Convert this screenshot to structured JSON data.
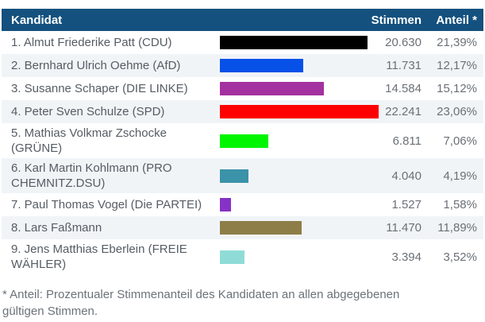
{
  "header": {
    "kandidat": "Kandidat",
    "stimmen": "Stimmen",
    "anteil": "Anteil *"
  },
  "table": {
    "rows": [
      {
        "name": "1. Almut Friederike Patt (CDU)",
        "votes": "20.630",
        "votes_value": 20630,
        "share": "21,39%",
        "bar_color": "#000000"
      },
      {
        "name": "2. Bernhard Ulrich Oehme (AfD)",
        "votes": "11.731",
        "votes_value": 11731,
        "share": "12,17%",
        "bar_color": "#0751e8"
      },
      {
        "name": "3. Susanne Schaper (DIE LINKE)",
        "votes": "14.584",
        "votes_value": 14584,
        "share": "15,12%",
        "bar_color": "#a3319f"
      },
      {
        "name": "4. Peter Sven Schulze (SPD)",
        "votes": "22.241",
        "votes_value": 22241,
        "share": "23,06%",
        "bar_color": "#fe0000"
      },
      {
        "name": "5. Mathias Volkmar Zschocke (GRÜNE)",
        "votes": "6.811",
        "votes_value": 6811,
        "share": "7,06%",
        "bar_color": "#00f500"
      },
      {
        "name": "6. Karl Martin Kohlmann (PRO CHEMNITZ.DSU)",
        "votes": "4.040",
        "votes_value": 4040,
        "share": "4,19%",
        "bar_color": "#3b93a9"
      },
      {
        "name": "7. Paul Thomas Vogel (Die PARTEI)",
        "votes": "1.527",
        "votes_value": 1527,
        "share": "1,58%",
        "bar_color": "#8632c6"
      },
      {
        "name": "8. Lars Faßmann",
        "votes": "11.470",
        "votes_value": 11470,
        "share": "11,89%",
        "bar_color": "#8d7e48"
      },
      {
        "name": "9. Jens Matthias Eberlein (FREIE WÄHLER)",
        "votes": "3.394",
        "votes_value": 3394,
        "share": "3,52%",
        "bar_color": "#8fdcd7"
      }
    ]
  },
  "footnote": "* Anteil: Prozentualer Stimmenanteil des Kandidaten an allen abgegebenen gültigen Stimmen.",
  "colors": {
    "header_bg": "#14517e",
    "header_text": "#ffffff",
    "row_alt_bg": "#f1f4f7",
    "name_text": "#565c64",
    "number_text": "#6b7076",
    "footnote_text": "#6c7278"
  },
  "chart_data": {
    "type": "bar",
    "orientation": "horizontal",
    "columns": [
      "Kandidat",
      "Stimmen",
      "Anteil *"
    ],
    "categories": [
      "1. Almut Friederike Patt (CDU)",
      "2. Bernhard Ulrich Oehme (AfD)",
      "3. Susanne Schaper (DIE LINKE)",
      "4. Peter Sven Schulze (SPD)",
      "5. Mathias Volkmar Zschocke (GRÜNE)",
      "6. Karl Martin Kohlmann (PRO CHEMNITZ.DSU)",
      "7. Paul Thomas Vogel (Die PARTEI)",
      "8. Lars Faßmann",
      "9. Jens Matthias Eberlein (FREIE WÄHLER)"
    ],
    "values": [
      20630,
      11731,
      14584,
      22241,
      6811,
      4040,
      1527,
      11470,
      3394
    ],
    "shares_percent": [
      21.39,
      12.17,
      15.12,
      23.06,
      7.06,
      4.19,
      1.58,
      11.89,
      3.52
    ],
    "bar_colors": [
      "#000000",
      "#0751e8",
      "#a3319f",
      "#fe0000",
      "#00f500",
      "#3b93a9",
      "#8632c6",
      "#8d7e48",
      "#8fdcd7"
    ],
    "xlim": [
      0,
      22241
    ],
    "grid": false,
    "legend": false,
    "title": ""
  }
}
